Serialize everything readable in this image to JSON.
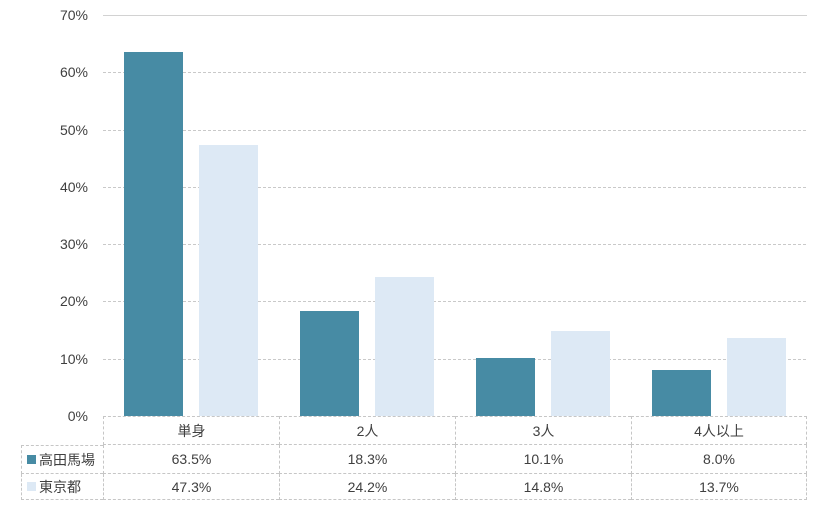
{
  "chart_data": {
    "type": "bar",
    "title": "",
    "xlabel": "",
    "ylabel": "",
    "categories": [
      "単身",
      "2人",
      "3人",
      "4人以上"
    ],
    "series": [
      {
        "name": "高田馬場",
        "color": "#478ba4",
        "values": [
          63.5,
          18.3,
          10.1,
          8.0
        ],
        "labels": [
          "63.5%",
          "18.3%",
          "10.1%",
          "8.0%"
        ]
      },
      {
        "name": "東京都",
        "color": "#dde9f5",
        "values": [
          47.3,
          24.2,
          14.8,
          13.7
        ],
        "labels": [
          "47.3%",
          "24.2%",
          "14.8%",
          "13.7%"
        ]
      }
    ],
    "y_ticks": [
      "0%",
      "10%",
      "20%",
      "30%",
      "40%",
      "50%",
      "60%",
      "70%"
    ],
    "ylim": [
      0,
      70
    ],
    "grid": true,
    "legend_position": "data-table-left-column"
  }
}
